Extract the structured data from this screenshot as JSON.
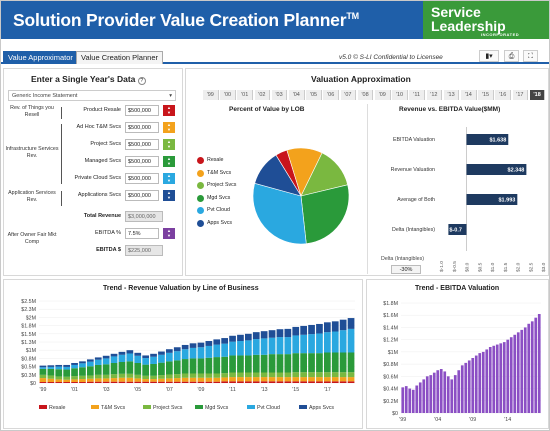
{
  "header": {
    "title": "Solution Provider Value Creation Planner",
    "tm": "TM",
    "logo_line1": "Service",
    "logo_line2": "Leadership",
    "logo_tagline": "INCORPORATED"
  },
  "tabs": [
    {
      "label": "Value Approximator",
      "active": true
    },
    {
      "label": "Value Creation Planner",
      "active": false
    }
  ],
  "toolbar": {
    "license": "v5.0 © S-LI Confidential to Licensee",
    "icons": [
      "bookmark-icon",
      "print-icon",
      "fullscreen-icon"
    ]
  },
  "left_panel": {
    "title": "Enter a Single Year's Data",
    "help_icon": "?",
    "statement_select": "Generic Income Statement",
    "groups": [
      "Rev. of Things you Resell",
      "Infrastructure Services Rev.",
      "Application Services Rev.",
      "After Owner Fair Mkt Comp"
    ],
    "rows": [
      {
        "label": "Product Resale",
        "value": "$500,000",
        "color": "#c8151b"
      },
      {
        "label": "Ad Hoc T&M Svcs",
        "value": "$500,000",
        "color": "#f3a21c"
      },
      {
        "label": "Project Svcs",
        "value": "$500,000",
        "color": "#7ab840"
      },
      {
        "label": "Managed Svcs",
        "value": "$500,000",
        "color": "#2a9a3a"
      },
      {
        "label": "Private Cloud Svcs",
        "value": "$500,000",
        "color": "#2aa8e0"
      },
      {
        "label": "Applications Svcs",
        "value": "$500,000",
        "color": "#1f4e96"
      }
    ],
    "total_label": "Total Revenue",
    "total_value": "$3,000,000",
    "ebitda_pct_label": "EBITDA %",
    "ebitda_pct_value": "7.5%",
    "ebitda_pct_color": "#7b3fa0",
    "ebitda_label": "EBITDA $",
    "ebitda_value": "$225,000"
  },
  "valuation": {
    "title": "Valuation Approximation",
    "years": [
      "'99",
      "'00",
      "'01",
      "'02",
      "'03",
      "'04",
      "'05",
      "'06",
      "'07",
      "'08",
      "'09",
      "'10",
      "'11",
      "'12",
      "'13",
      "'14",
      "'15",
      "'16",
      "'17",
      "'18"
    ],
    "selected_year": "'18"
  },
  "pie": {
    "title": "Percent of Value by LOB",
    "legend": [
      {
        "name": "Resale",
        "color": "#c8151b"
      },
      {
        "name": "T&M Svcs",
        "color": "#f3a21c"
      },
      {
        "name": "Project Svcs",
        "color": "#7ab840"
      },
      {
        "name": "Mgd Svcs",
        "color": "#2a9a3a"
      },
      {
        "name": "Pvt Cloud",
        "color": "#2aa8e0"
      },
      {
        "name": "Apps Svcs",
        "color": "#1f4e96"
      }
    ]
  },
  "hbar": {
    "title": "Revenue vs. EBITDA Value($MM)",
    "rows": [
      {
        "label": "EBITDA Valuation",
        "value": "$1.638"
      },
      {
        "label": "Revenue Valuation",
        "value": "$2.348"
      },
      {
        "label": "Average of Both",
        "value": "$1.993"
      },
      {
        "label": "Delta (Intangibles)",
        "value": "$-0.7"
      }
    ],
    "delta_pct_label": "Delta (Intangibles)",
    "delta_pct_value": "-30%",
    "ticks": [
      "$-1.0",
      "$-0.5",
      "$0.0",
      "$0.5",
      "$1.0",
      "$1.5",
      "$2.0",
      "$2.5",
      "$3.0"
    ]
  },
  "chart_data": [
    {
      "type": "pie",
      "title": "Percent of Value by LOB",
      "categories": [
        "Resale",
        "T&M Svcs",
        "Project Svcs",
        "Mgd Svcs",
        "Pvt Cloud",
        "Apps Svcs"
      ],
      "values": [
        4,
        12,
        14,
        27,
        31,
        12
      ]
    },
    {
      "type": "bar",
      "title": "Revenue vs. EBITDA Value($MM)",
      "categories": [
        "EBITDA Valuation",
        "Revenue Valuation",
        "Average of Both",
        "Delta (Intangibles)"
      ],
      "values": [
        1.638,
        2.348,
        1.993,
        -0.71
      ],
      "xlim": [
        -1,
        3
      ]
    },
    {
      "type": "bar",
      "title": "Trend - Revenue Valuation by Line of Business",
      "stacked": true,
      "y_ticks": [
        "$0",
        "$0.3M",
        "$0.5M",
        "$0.8M",
        "$1M",
        "$1.3M",
        "$1.5M",
        "$1.8M",
        "$2M",
        "$2.3M",
        "$2.5M"
      ],
      "x_ticks": [
        "'99",
        "'01",
        "'03",
        "'05",
        "'07",
        "'09",
        "'11",
        "'13",
        "'15",
        "'17"
      ],
      "ylim": [
        0,
        2.5
      ],
      "series": [
        {
          "name": "Resale",
          "color": "#c8151b",
          "values": [
            0.03,
            0.03,
            0.03,
            0.03,
            0.03,
            0.03,
            0.04,
            0.04,
            0.04,
            0.04,
            0.04,
            0.04,
            0.04,
            0.04,
            0.04,
            0.04,
            0.04,
            0.04,
            0.04,
            0.04,
            0.04,
            0.04,
            0.04,
            0.05,
            0.05,
            0.05,
            0.05,
            0.05,
            0.05,
            0.05,
            0.05,
            0.05,
            0.05,
            0.05,
            0.05,
            0.05,
            0.05,
            0.05,
            0.05,
            0.05
          ]
        },
        {
          "name": "T&M Svcs",
          "color": "#f3a21c",
          "values": [
            0.12,
            0.1,
            0.08,
            0.07,
            0.08,
            0.09,
            0.09,
            0.1,
            0.1,
            0.11,
            0.12,
            0.12,
            0.1,
            0.08,
            0.08,
            0.09,
            0.1,
            0.11,
            0.12,
            0.12,
            0.12,
            0.12,
            0.12,
            0.12,
            0.13,
            0.13,
            0.13,
            0.13,
            0.13,
            0.13,
            0.13,
            0.13,
            0.13,
            0.13,
            0.13,
            0.13,
            0.13,
            0.13,
            0.13,
            0.13
          ]
        },
        {
          "name": "Project Svcs",
          "color": "#7ab840",
          "values": [
            0.1,
            0.1,
            0.09,
            0.09,
            0.1,
            0.1,
            0.1,
            0.11,
            0.11,
            0.12,
            0.12,
            0.12,
            0.11,
            0.1,
            0.1,
            0.11,
            0.12,
            0.12,
            0.13,
            0.13,
            0.13,
            0.13,
            0.13,
            0.13,
            0.14,
            0.14,
            0.14,
            0.14,
            0.14,
            0.14,
            0.14,
            0.14,
            0.15,
            0.15,
            0.15,
            0.15,
            0.15,
            0.15,
            0.15,
            0.15
          ]
        },
        {
          "name": "Mgd Svcs",
          "color": "#2a9a3a",
          "values": [
            0.18,
            0.2,
            0.22,
            0.22,
            0.24,
            0.26,
            0.28,
            0.3,
            0.32,
            0.34,
            0.36,
            0.38,
            0.36,
            0.34,
            0.36,
            0.38,
            0.4,
            0.42,
            0.44,
            0.46,
            0.46,
            0.48,
            0.5,
            0.5,
            0.52,
            0.52,
            0.52,
            0.54,
            0.54,
            0.56,
            0.56,
            0.56,
            0.58,
            0.58,
            0.58,
            0.58,
            0.6,
            0.6,
            0.6,
            0.6
          ]
        },
        {
          "name": "Pvt Cloud",
          "color": "#2aa8e0",
          "values": [
            0.05,
            0.06,
            0.08,
            0.08,
            0.1,
            0.12,
            0.14,
            0.16,
            0.18,
            0.2,
            0.22,
            0.24,
            0.22,
            0.2,
            0.22,
            0.24,
            0.26,
            0.28,
            0.3,
            0.32,
            0.34,
            0.36,
            0.38,
            0.4,
            0.42,
            0.44,
            0.46,
            0.48,
            0.5,
            0.5,
            0.52,
            0.52,
            0.54,
            0.56,
            0.58,
            0.6,
            0.62,
            0.64,
            0.68,
            0.72
          ]
        },
        {
          "name": "Apps Svcs",
          "color": "#1f4e96",
          "values": [
            0.05,
            0.05,
            0.05,
            0.06,
            0.06,
            0.06,
            0.07,
            0.07,
            0.08,
            0.08,
            0.09,
            0.1,
            0.09,
            0.08,
            0.09,
            0.1,
            0.11,
            0.12,
            0.13,
            0.14,
            0.14,
            0.15,
            0.16,
            0.17,
            0.18,
            0.19,
            0.2,
            0.21,
            0.22,
            0.23,
            0.24,
            0.25,
            0.26,
            0.27,
            0.28,
            0.29,
            0.3,
            0.31,
            0.32,
            0.33
          ]
        }
      ]
    },
    {
      "type": "bar",
      "title": "Trend - EBITDA Valuation",
      "color": "#8b4fc4",
      "y_ticks": [
        "$0",
        "$0.2M",
        "$0.4M",
        "$0.6M",
        "$0.8M",
        "$1M",
        "$1.2M",
        "$1.4M",
        "$1.6M",
        "$1.8M"
      ],
      "x_ticks": [
        "'99",
        "'04",
        "'09",
        "'14"
      ],
      "ylim": [
        0,
        1.8
      ],
      "values": [
        0.42,
        0.44,
        0.4,
        0.38,
        0.45,
        0.5,
        0.55,
        0.6,
        0.62,
        0.66,
        0.7,
        0.72,
        0.68,
        0.6,
        0.55,
        0.62,
        0.7,
        0.78,
        0.82,
        0.86,
        0.9,
        0.94,
        0.98,
        1.0,
        1.04,
        1.08,
        1.1,
        1.12,
        1.14,
        1.16,
        1.2,
        1.24,
        1.28,
        1.32,
        1.36,
        1.4,
        1.46,
        1.5,
        1.56,
        1.62
      ]
    }
  ],
  "trend_rev": {
    "title": "Trend - Revenue Valuation by Line of Business"
  },
  "trend_ebitda": {
    "title": "Trend - EBITDA Valuation"
  }
}
